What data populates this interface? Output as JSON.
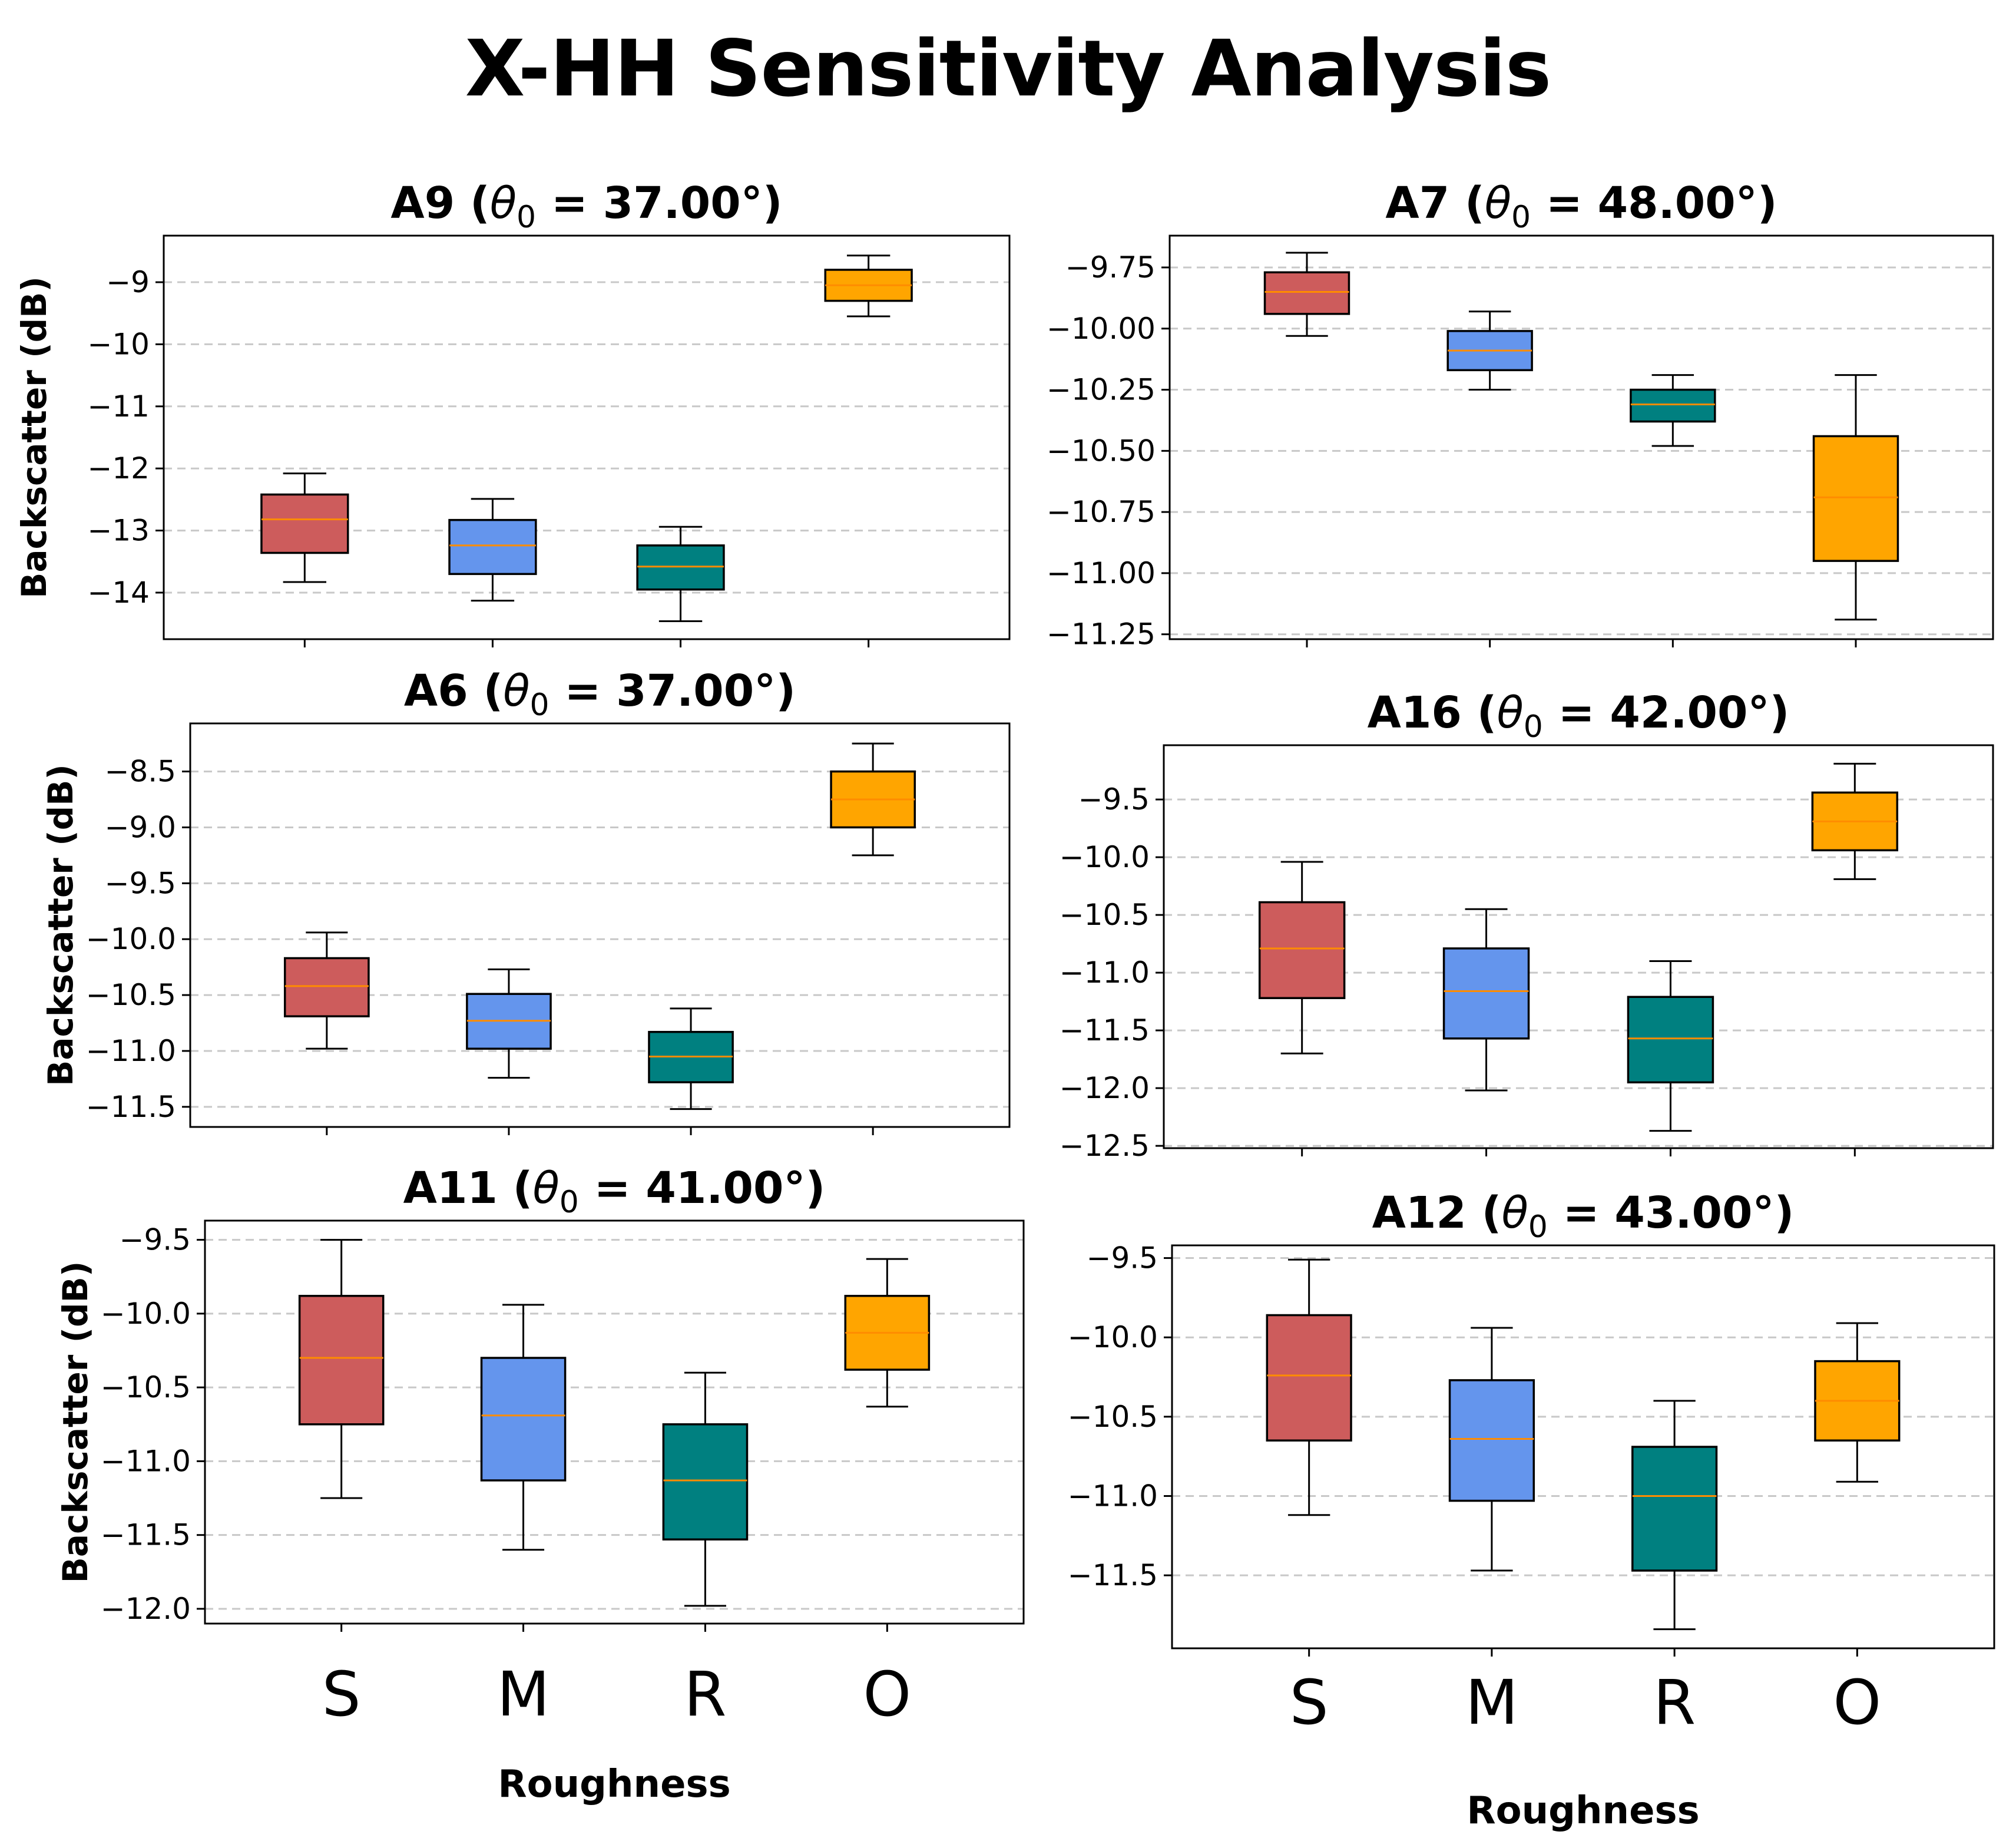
{
  "figure": {
    "title": "X-HH Sensitivity Analysis",
    "xlabel": "Roughness",
    "ylabel": "Backscatter (dB)"
  },
  "colors": {
    "S": "#cd5c5c",
    "M": "#6495ed",
    "R": "#008080",
    "O": "#ffa500",
    "median": "#ff8c00",
    "grid": "#c8c8c8"
  },
  "chart_data": [
    {
      "type": "box",
      "panel_label": "A9",
      "theta_value": "37.00°",
      "categories": [
        "S",
        "M",
        "R",
        "O"
      ],
      "show_xticklabels": false,
      "ylim": [
        -14.75,
        -8.25
      ],
      "yticks": [
        -14,
        -13,
        -12,
        -11,
        -10,
        -9
      ],
      "ytick_labels": [
        "−14",
        "−13",
        "−12",
        "−11",
        "−10",
        "−9"
      ],
      "boxes": [
        {
          "category": "S",
          "whisker_low": -13.83,
          "q1": -13.36,
          "median": -12.82,
          "q3": -12.42,
          "whisker_high": -12.08
        },
        {
          "category": "M",
          "whisker_low": -14.13,
          "q1": -13.7,
          "median": -13.24,
          "q3": -12.83,
          "whisker_high": -12.49
        },
        {
          "category": "R",
          "whisker_low": -14.46,
          "q1": -13.95,
          "median": -13.58,
          "q3": -13.24,
          "whisker_high": -12.94
        },
        {
          "category": "O",
          "whisker_low": -9.55,
          "q1": -9.3,
          "median": -9.05,
          "q3": -8.8,
          "whisker_high": -8.57
        }
      ]
    },
    {
      "type": "box",
      "panel_label": "A7",
      "theta_value": "48.00°",
      "categories": [
        "S",
        "M",
        "R",
        "O"
      ],
      "show_xticklabels": false,
      "ylim": [
        -11.27,
        -9.62
      ],
      "yticks": [
        -11.25,
        -11.0,
        -10.75,
        -10.5,
        -10.25,
        -10.0,
        -9.75
      ],
      "ytick_labels": [
        "−11.25",
        "−11.00",
        "−10.75",
        "−10.50",
        "−10.25",
        "−10.00",
        "−9.75"
      ],
      "boxes": [
        {
          "category": "S",
          "whisker_low": -10.03,
          "q1": -9.94,
          "median": -9.85,
          "q3": -9.77,
          "whisker_high": -9.69
        },
        {
          "category": "M",
          "whisker_low": -10.25,
          "q1": -10.17,
          "median": -10.09,
          "q3": -10.01,
          "whisker_high": -9.93
        },
        {
          "category": "R",
          "whisker_low": -10.48,
          "q1": -10.38,
          "median": -10.31,
          "q3": -10.25,
          "whisker_high": -10.19
        },
        {
          "category": "O",
          "whisker_low": -11.19,
          "q1": -10.95,
          "median": -10.69,
          "q3": -10.44,
          "whisker_high": -10.19
        }
      ]
    },
    {
      "type": "box",
      "panel_label": "A6",
      "theta_value": "37.00°",
      "categories": [
        "S",
        "M",
        "R",
        "O"
      ],
      "show_xticklabels": false,
      "ylim": [
        -11.68,
        -8.07
      ],
      "yticks": [
        -11.5,
        -11.0,
        -10.5,
        -10.0,
        -9.5,
        -9.0,
        -8.5
      ],
      "ytick_labels": [
        "−11.5",
        "−11.0",
        "−10.5",
        "−10.0",
        "−9.5",
        "−9.0",
        "−8.5"
      ],
      "boxes": [
        {
          "category": "S",
          "whisker_low": -10.98,
          "q1": -10.69,
          "median": -10.42,
          "q3": -10.17,
          "whisker_high": -9.94
        },
        {
          "category": "M",
          "whisker_low": -11.24,
          "q1": -10.98,
          "median": -10.73,
          "q3": -10.49,
          "whisker_high": -10.27
        },
        {
          "category": "R",
          "whisker_low": -11.52,
          "q1": -11.28,
          "median": -11.05,
          "q3": -10.83,
          "whisker_high": -10.62
        },
        {
          "category": "O",
          "whisker_low": -9.25,
          "q1": -9.0,
          "median": -8.75,
          "q3": -8.5,
          "whisker_high": -8.25
        }
      ]
    },
    {
      "type": "box",
      "panel_label": "A16",
      "theta_value": "42.00°",
      "categories": [
        "S",
        "M",
        "R",
        "O"
      ],
      "show_xticklabels": false,
      "ylim": [
        -12.52,
        -9.03
      ],
      "yticks": [
        -12.5,
        -12.0,
        -11.5,
        -11.0,
        -10.5,
        -10.0,
        -9.5
      ],
      "ytick_labels": [
        "−12.5",
        "−12.0",
        "−11.5",
        "−11.0",
        "−10.5",
        "−10.0",
        "−9.5"
      ],
      "boxes": [
        {
          "category": "S",
          "whisker_low": -11.7,
          "q1": -11.22,
          "median": -10.79,
          "q3": -10.39,
          "whisker_high": -10.04
        },
        {
          "category": "M",
          "whisker_low": -12.02,
          "q1": -11.57,
          "median": -11.16,
          "q3": -10.79,
          "whisker_high": -10.45
        },
        {
          "category": "R",
          "whisker_low": -12.37,
          "q1": -11.95,
          "median": -11.57,
          "q3": -11.21,
          "whisker_high": -10.9
        },
        {
          "category": "O",
          "whisker_low": -10.19,
          "q1": -9.94,
          "median": -9.69,
          "q3": -9.44,
          "whisker_high": -9.19
        }
      ]
    },
    {
      "type": "box",
      "panel_label": "A11",
      "theta_value": "41.00°",
      "categories": [
        "S",
        "M",
        "R",
        "O"
      ],
      "show_xticklabels": true,
      "ylim": [
        -12.1,
        -9.37
      ],
      "yticks": [
        -12.0,
        -11.5,
        -11.0,
        -10.5,
        -10.0,
        -9.5
      ],
      "ytick_labels": [
        "−12.0",
        "−11.5",
        "−11.0",
        "−10.5",
        "−10.0",
        "−9.5"
      ],
      "boxes": [
        {
          "category": "S",
          "whisker_low": -11.25,
          "q1": -10.75,
          "median": -10.3,
          "q3": -9.88,
          "whisker_high": -9.5
        },
        {
          "category": "M",
          "whisker_low": -11.6,
          "q1": -11.13,
          "median": -10.69,
          "q3": -10.3,
          "whisker_high": -9.94
        },
        {
          "category": "R",
          "whisker_low": -11.98,
          "q1": -11.53,
          "median": -11.13,
          "q3": -10.75,
          "whisker_high": -10.4
        },
        {
          "category": "O",
          "whisker_low": -10.63,
          "q1": -10.38,
          "median": -10.13,
          "q3": -9.88,
          "whisker_high": -9.63
        }
      ]
    },
    {
      "type": "box",
      "panel_label": "A12",
      "theta_value": "43.00°",
      "categories": [
        "S",
        "M",
        "R",
        "O"
      ],
      "show_xticklabels": true,
      "ylim": [
        -11.96,
        -9.42
      ],
      "yticks": [
        -11.5,
        -11.0,
        -10.5,
        -10.0,
        -9.5
      ],
      "ytick_labels": [
        "−11.5",
        "−11.0",
        "−10.5",
        "−10.0",
        "−9.5"
      ],
      "boxes": [
        {
          "category": "S",
          "whisker_low": -11.12,
          "q1": -10.65,
          "median": -10.24,
          "q3": -9.86,
          "whisker_high": -9.51
        },
        {
          "category": "M",
          "whisker_low": -11.47,
          "q1": -11.03,
          "median": -10.64,
          "q3": -10.27,
          "whisker_high": -9.94
        },
        {
          "category": "R",
          "whisker_low": -11.84,
          "q1": -11.47,
          "median": -11.0,
          "q3": -10.69,
          "whisker_high": -10.4
        },
        {
          "category": "O",
          "whisker_low": -10.91,
          "q1": -10.65,
          "median": -10.4,
          "q3": -10.15,
          "whisker_high": -9.91
        }
      ]
    }
  ]
}
